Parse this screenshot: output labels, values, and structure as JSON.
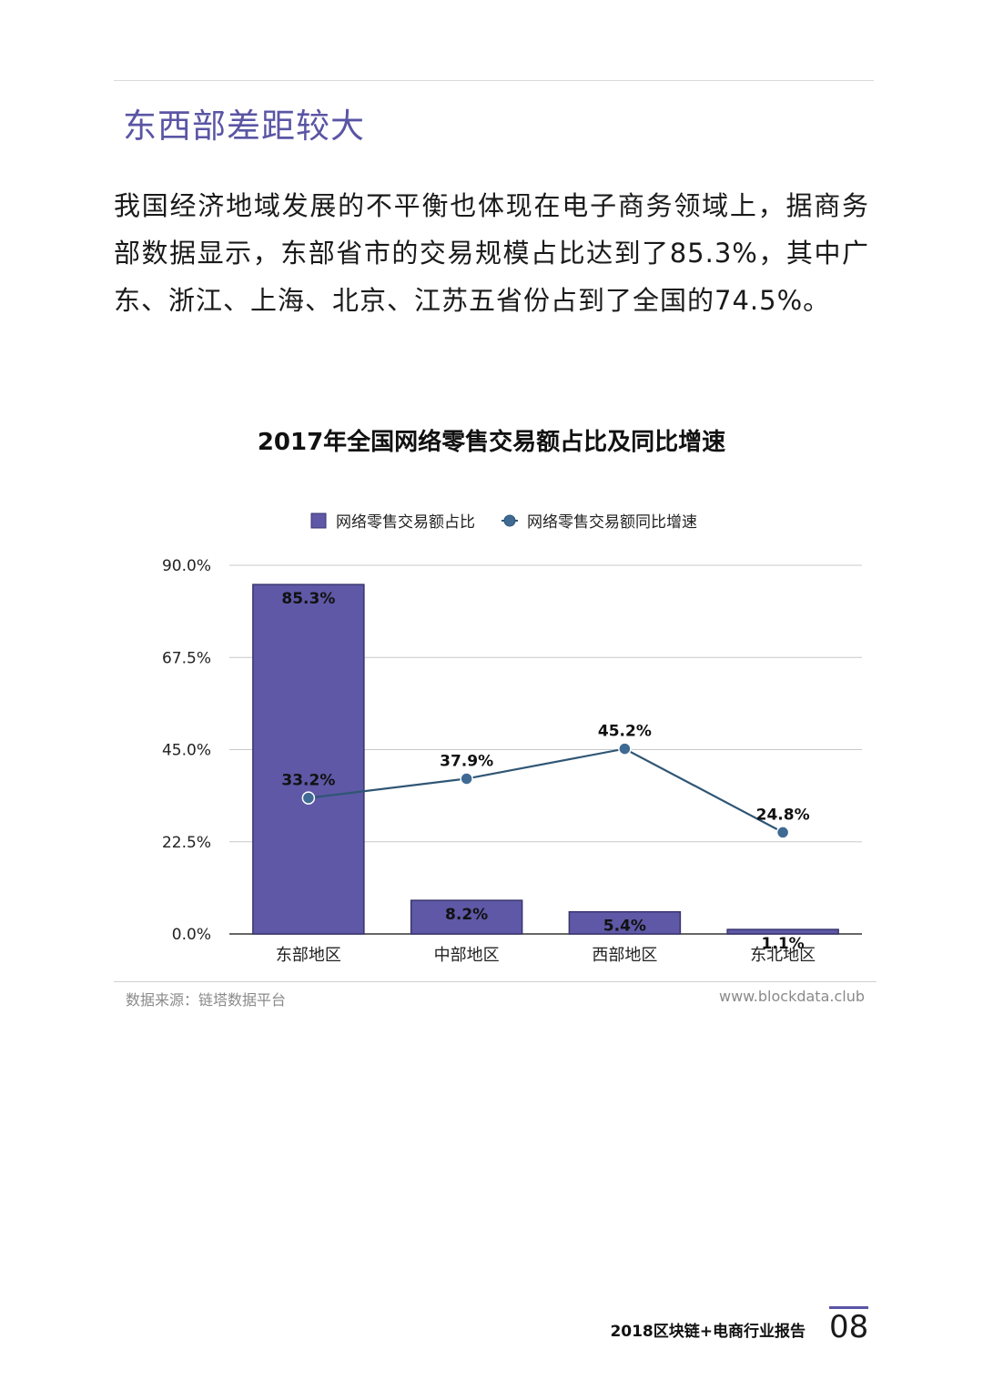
{
  "section": {
    "title": "东西部差距较大",
    "intro": "我国经济地域发展的不平衡也体现在电子商务领域上，据商务部数据显示，东部省市的交易规模占比达到了85.3%，其中广东、浙江、上海、北京、江苏五省份占到了全国的74.5%。"
  },
  "chart_data": {
    "type": "bar",
    "title": "2017年全国网络零售交易额占比及同比增速",
    "categories": [
      "东部地区",
      "中部地区",
      "西部地区",
      "东北地区"
    ],
    "series": [
      {
        "name": "网络零售交易额占比",
        "kind": "bar",
        "values": [
          85.3,
          8.2,
          5.4,
          1.1
        ],
        "labels": [
          "85.3%",
          "8.2%",
          "5.4%",
          "1.1%"
        ]
      },
      {
        "name": "网络零售交易额同比增速",
        "kind": "line",
        "values": [
          33.2,
          37.9,
          45.2,
          24.8
        ],
        "labels": [
          "33.2%",
          "37.9%",
          "45.2%",
          "24.8%"
        ]
      }
    ],
    "yticks": [
      0,
      22.5,
      45,
      67.5,
      90
    ],
    "ytick_labels": [
      "0.0%",
      "22.5%",
      "45.0%",
      "67.5%",
      "90.0%"
    ],
    "ylim": [
      0,
      90
    ],
    "grid": true,
    "legend_position": "top-center",
    "colors": {
      "bar": "#5e58a6",
      "bar_edge": "#39356f",
      "line": "#2f5675",
      "marker": "#3f6a93"
    }
  },
  "footer": {
    "source": "数据来源：链塔数据平台",
    "site": "www.blockdata.club",
    "report_title": "2018区块链+电商行业报告",
    "page_number": "08"
  }
}
